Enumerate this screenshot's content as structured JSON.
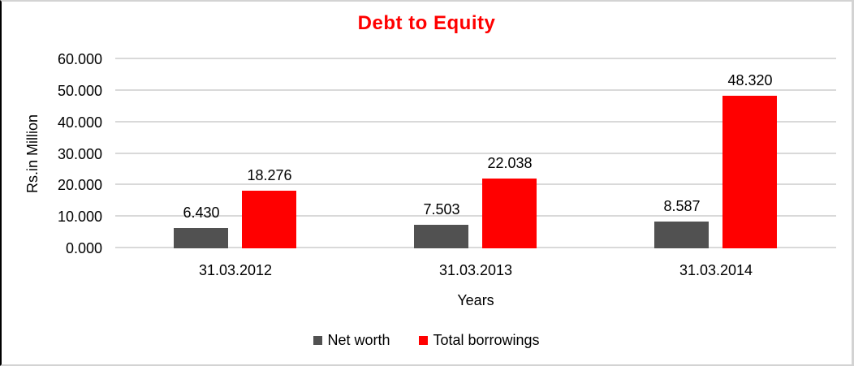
{
  "chart_data": {
    "type": "bar",
    "title": "Debt to Equity",
    "title_color": "#FF0000",
    "xlabel": "Years",
    "ylabel": "Rs.in Million",
    "categories": [
      "31.03.2012",
      "31.03.2013",
      "31.03.2014"
    ],
    "series": [
      {
        "name": "Net worth",
        "color": "#515151",
        "values": [
          6.43,
          7.503,
          8.587
        ],
        "value_labels": [
          "6.430",
          "7.503",
          "8.587"
        ]
      },
      {
        "name": "Total borrowings",
        "color": "#FF0000",
        "values": [
          18.276,
          22.038,
          48.32
        ],
        "value_labels": [
          "18.276",
          "22.038",
          "48.320"
        ]
      }
    ],
    "ylim": [
      0,
      60
    ],
    "y_ticks": [
      "0.000",
      "10.000",
      "20.000",
      "30.000",
      "40.000",
      "50.000",
      "60.000"
    ],
    "grid": "horizontal",
    "gridline_color": "#d9d9d9",
    "legend_position": "bottom"
  }
}
